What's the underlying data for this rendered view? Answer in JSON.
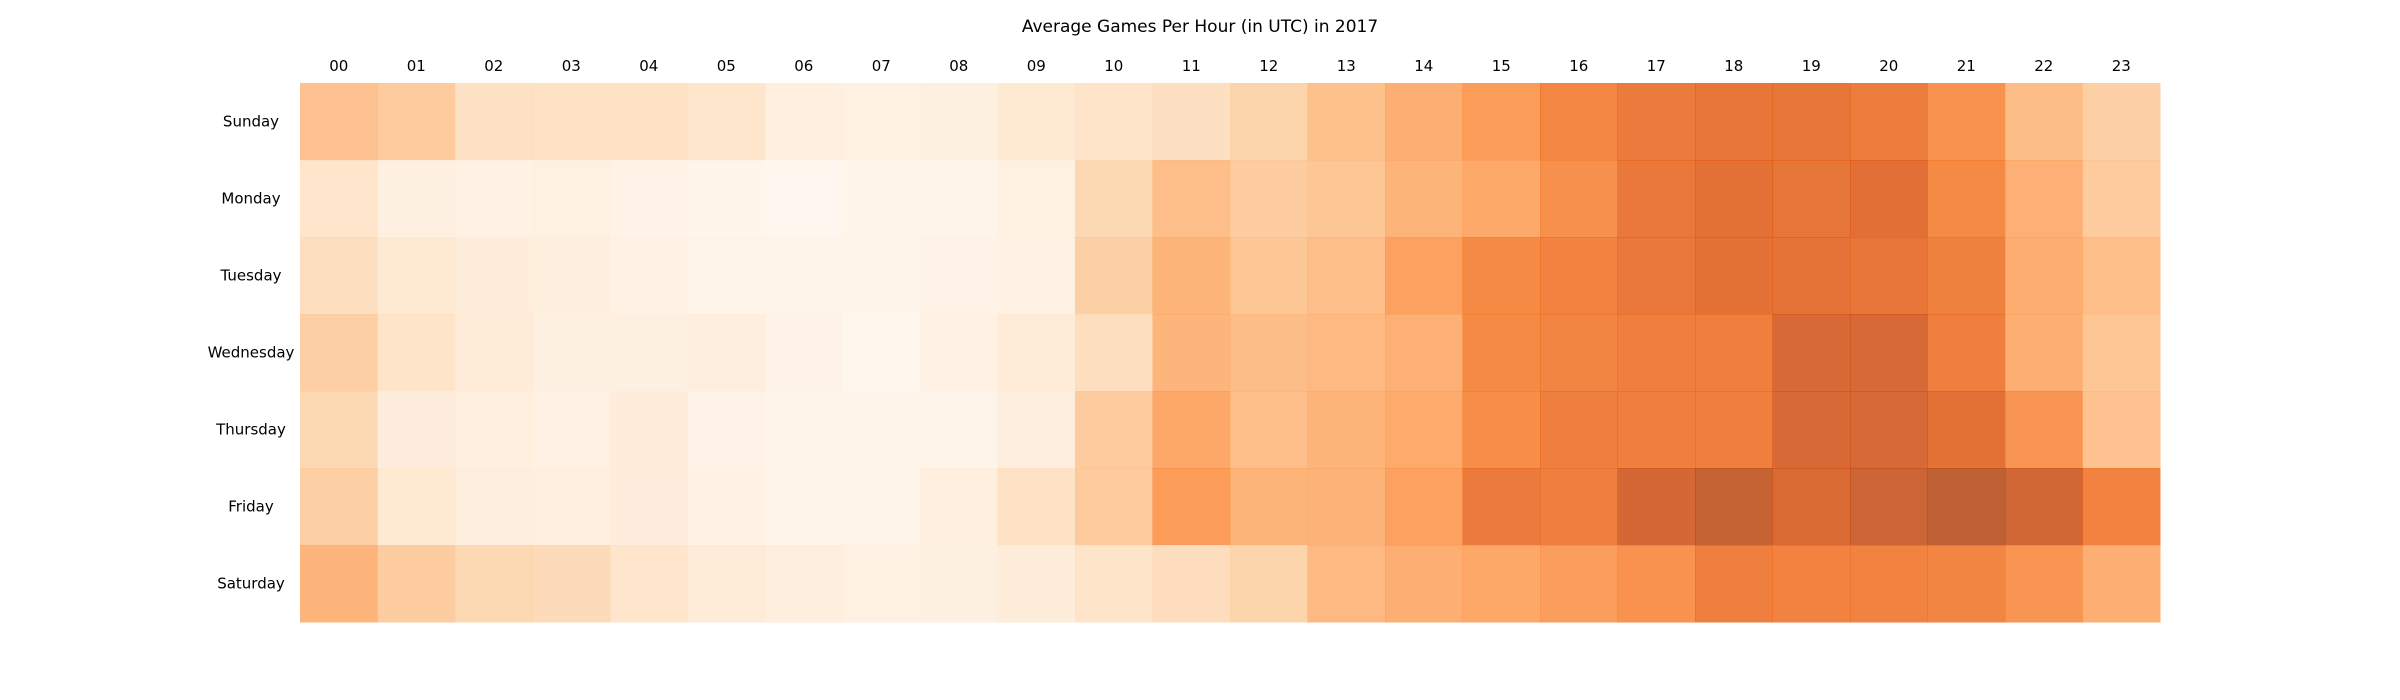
{
  "chart_data": {
    "type": "heatmap",
    "title": "Average Games Per Hour (in UTC) in 2017",
    "x_categories": [
      "00",
      "01",
      "02",
      "03",
      "04",
      "05",
      "06",
      "07",
      "08",
      "09",
      "10",
      "11",
      "12",
      "13",
      "14",
      "15",
      "16",
      "17",
      "18",
      "19",
      "20",
      "21",
      "22",
      "23"
    ],
    "y_categories": [
      "Sunday",
      "Monday",
      "Tuesday",
      "Wednesday",
      "Thursday",
      "Friday",
      "Saturday"
    ],
    "values": [
      [
        0.42,
        0.37,
        0.23,
        0.22,
        0.22,
        0.19,
        0.1,
        0.08,
        0.09,
        0.17,
        0.21,
        0.24,
        0.32,
        0.43,
        0.53,
        0.63,
        0.74,
        0.8,
        0.83,
        0.84,
        0.79,
        0.68,
        0.45,
        0.35
      ],
      [
        0.2,
        0.09,
        0.07,
        0.08,
        0.05,
        0.03,
        0.0,
        0.03,
        0.04,
        0.08,
        0.3,
        0.44,
        0.36,
        0.4,
        0.5,
        0.56,
        0.69,
        0.82,
        0.86,
        0.84,
        0.87,
        0.72,
        0.52,
        0.37
      ],
      [
        0.25,
        0.17,
        0.13,
        0.11,
        0.07,
        0.04,
        0.04,
        0.03,
        0.05,
        0.07,
        0.35,
        0.5,
        0.4,
        0.44,
        0.6,
        0.72,
        0.76,
        0.82,
        0.86,
        0.85,
        0.83,
        0.77,
        0.54,
        0.44
      ],
      [
        0.35,
        0.21,
        0.14,
        0.09,
        0.09,
        0.11,
        0.05,
        0.01,
        0.06,
        0.14,
        0.25,
        0.49,
        0.45,
        0.47,
        0.52,
        0.72,
        0.75,
        0.78,
        0.78,
        0.92,
        0.92,
        0.78,
        0.53,
        0.4
      ],
      [
        0.3,
        0.12,
        0.1,
        0.06,
        0.13,
        0.05,
        0.03,
        0.03,
        0.04,
        0.11,
        0.37,
        0.57,
        0.44,
        0.5,
        0.55,
        0.7,
        0.78,
        0.78,
        0.78,
        0.92,
        0.92,
        0.86,
        0.67,
        0.42
      ],
      [
        0.35,
        0.17,
        0.11,
        0.1,
        0.12,
        0.07,
        0.04,
        0.04,
        0.1,
        0.22,
        0.37,
        0.63,
        0.5,
        0.51,
        0.6,
        0.8,
        0.78,
        0.93,
        0.98,
        0.91,
        0.96,
        1.0,
        0.94,
        0.76
      ],
      [
        0.49,
        0.36,
        0.3,
        0.28,
        0.2,
        0.14,
        0.11,
        0.08,
        0.09,
        0.13,
        0.21,
        0.26,
        0.32,
        0.47,
        0.53,
        0.57,
        0.62,
        0.68,
        0.78,
        0.76,
        0.76,
        0.75,
        0.66,
        0.53
      ]
    ],
    "colormap": "Oranges",
    "grid": false,
    "legend": "none"
  }
}
